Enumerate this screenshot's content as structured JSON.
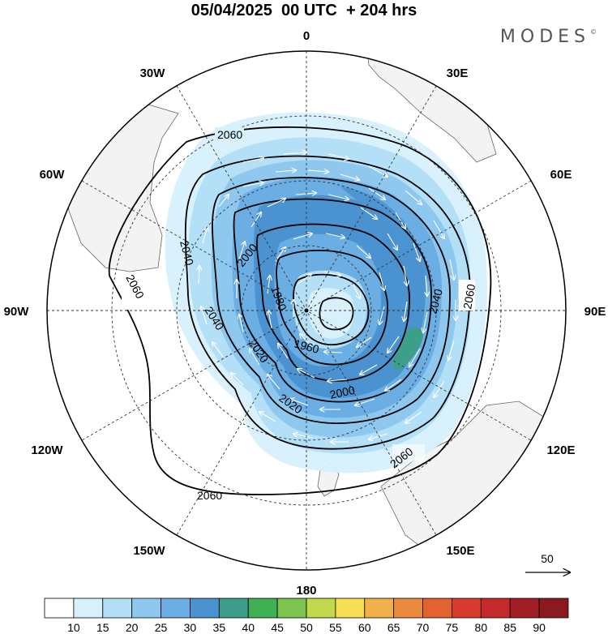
{
  "header": {
    "title": "05/04/2025  00 UTC  + 204 hrs",
    "brand": "MODES",
    "brand_mark": "©"
  },
  "map": {
    "projection": "south-polar-stereographic",
    "longitude_labels": [
      "0",
      "30E",
      "60E",
      "90E",
      "120E",
      "150E",
      "180",
      "150W",
      "120W",
      "90W",
      "60W",
      "30W"
    ],
    "contour_labels": [
      "2060",
      "2060",
      "2060",
      "2060",
      "2040",
      "2040",
      "2040",
      "2020",
      "2020",
      "2000",
      "2000",
      "1980",
      "1960"
    ],
    "land_color": "#f3f3f3",
    "contour_color": "#000000",
    "vector_color": "#ffffff"
  },
  "reference_vector": {
    "label": "50"
  },
  "colorbar": {
    "ticks": [
      "10",
      "15",
      "20",
      "25",
      "30",
      "35",
      "40",
      "45",
      "50",
      "55",
      "60",
      "65",
      "70",
      "75",
      "80",
      "85",
      "90"
    ],
    "colors": [
      "#ffffff",
      "#d6f0fc",
      "#b3dff7",
      "#8fc8ef",
      "#6aaee4",
      "#4b93d0",
      "#3d9e8a",
      "#3fb054",
      "#7cc44d",
      "#c1d94b",
      "#f7df55",
      "#f2b04b",
      "#eb8a3f",
      "#e4622f",
      "#d73b2c",
      "#c42a2b",
      "#a21e25",
      "#8a1a1e"
    ]
  }
}
